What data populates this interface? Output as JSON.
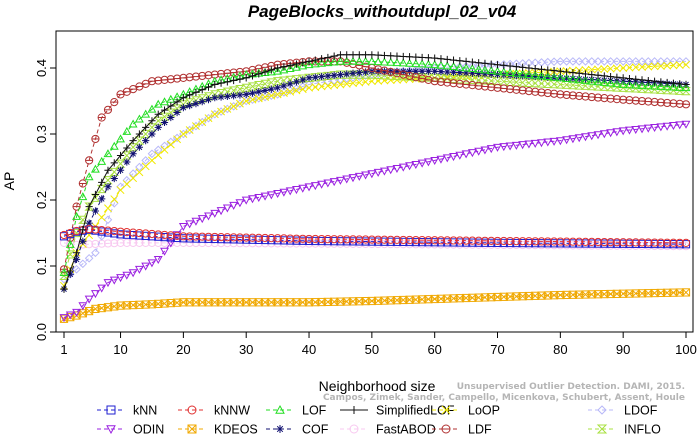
{
  "chart_data": {
    "type": "line",
    "title": "PageBlocks_withoutdupl_02_v04",
    "xlabel": "Neighborhood size",
    "ylabel": "AP",
    "xlim": [
      1,
      100
    ],
    "ylim": [
      0,
      0.45
    ],
    "xticks": [
      1,
      10,
      20,
      30,
      40,
      50,
      60,
      70,
      80,
      90,
      100
    ],
    "yticks": [
      0.0,
      0.1,
      0.2,
      0.3,
      0.4
    ],
    "ytick_labels": [
      "0.0",
      "0.1",
      "0.2",
      "0.3",
      "0.4"
    ],
    "grid": false,
    "legend_placement": "bottom",
    "series": [
      {
        "name": "kNN",
        "color": "#1f1fd0",
        "marker": "square",
        "dash": "4,3",
        "keypoints": [
          [
            1,
            0.145
          ],
          [
            3,
            0.152
          ],
          [
            5,
            0.155
          ],
          [
            10,
            0.148
          ],
          [
            20,
            0.142
          ],
          [
            40,
            0.138
          ],
          [
            70,
            0.135
          ],
          [
            100,
            0.133
          ]
        ]
      },
      {
        "name": "kNNW",
        "color": "#e03030",
        "marker": "circle",
        "dash": "4,3",
        "keypoints": [
          [
            1,
            0.147
          ],
          [
            3,
            0.153
          ],
          [
            5,
            0.156
          ],
          [
            10,
            0.152
          ],
          [
            20,
            0.145
          ],
          [
            40,
            0.141
          ],
          [
            70,
            0.138
          ],
          [
            100,
            0.135
          ]
        ]
      },
      {
        "name": "LOF",
        "color": "#22dd22",
        "marker": "triangle-up",
        "dash": "4,3",
        "keypoints": [
          [
            1,
            0.09
          ],
          [
            3,
            0.175
          ],
          [
            5,
            0.235
          ],
          [
            8,
            0.27
          ],
          [
            12,
            0.315
          ],
          [
            16,
            0.345
          ],
          [
            20,
            0.36
          ],
          [
            25,
            0.38
          ],
          [
            30,
            0.39
          ],
          [
            35,
            0.395
          ],
          [
            40,
            0.405
          ],
          [
            45,
            0.41
          ],
          [
            50,
            0.41
          ],
          [
            60,
            0.405
          ],
          [
            70,
            0.395
          ],
          [
            80,
            0.385
          ],
          [
            90,
            0.375
          ],
          [
            100,
            0.37
          ]
        ]
      },
      {
        "name": "SimplifiedLOF",
        "color": "#111111",
        "marker": "plus",
        "dash": "none",
        "keypoints": [
          [
            1,
            0.065
          ],
          [
            3,
            0.12
          ],
          [
            5,
            0.19
          ],
          [
            8,
            0.245
          ],
          [
            12,
            0.29
          ],
          [
            16,
            0.33
          ],
          [
            20,
            0.355
          ],
          [
            25,
            0.375
          ],
          [
            30,
            0.385
          ],
          [
            35,
            0.4
          ],
          [
            40,
            0.41
          ],
          [
            45,
            0.42
          ],
          [
            50,
            0.42
          ],
          [
            60,
            0.415
          ],
          [
            70,
            0.405
          ],
          [
            80,
            0.395
          ],
          [
            90,
            0.385
          ],
          [
            100,
            0.375
          ]
        ]
      },
      {
        "name": "LoOP",
        "color": "#f0e800",
        "marker": "x",
        "dash": "4,3",
        "keypoints": [
          [
            1,
            0.07
          ],
          [
            3,
            0.12
          ],
          [
            6,
            0.16
          ],
          [
            10,
            0.215
          ],
          [
            15,
            0.26
          ],
          [
            20,
            0.3
          ],
          [
            25,
            0.33
          ],
          [
            30,
            0.35
          ],
          [
            35,
            0.36
          ],
          [
            40,
            0.37
          ],
          [
            50,
            0.38
          ],
          [
            60,
            0.385
          ],
          [
            70,
            0.39
          ],
          [
            80,
            0.395
          ],
          [
            90,
            0.4
          ],
          [
            100,
            0.405
          ]
        ]
      },
      {
        "name": "LDOF",
        "color": "#b8b8f8",
        "marker": "diamond",
        "dash": "4,3",
        "keypoints": [
          [
            1,
            0.08
          ],
          [
            3,
            0.095
          ],
          [
            6,
            0.12
          ],
          [
            10,
            0.22
          ],
          [
            15,
            0.27
          ],
          [
            20,
            0.3
          ],
          [
            25,
            0.33
          ],
          [
            30,
            0.35
          ],
          [
            35,
            0.36
          ],
          [
            40,
            0.375
          ],
          [
            50,
            0.39
          ],
          [
            60,
            0.4
          ],
          [
            70,
            0.405
          ],
          [
            80,
            0.41
          ],
          [
            90,
            0.41
          ],
          [
            100,
            0.41
          ]
        ]
      },
      {
        "name": "ODIN",
        "color": "#9a20e0",
        "marker": "triangle-down",
        "dash": "4,3",
        "keypoints": [
          [
            1,
            0.022
          ],
          [
            3,
            0.03
          ],
          [
            5,
            0.05
          ],
          [
            8,
            0.075
          ],
          [
            12,
            0.09
          ],
          [
            16,
            0.11
          ],
          [
            20,
            0.16
          ],
          [
            25,
            0.18
          ],
          [
            30,
            0.2
          ],
          [
            35,
            0.21
          ],
          [
            40,
            0.22
          ],
          [
            45,
            0.23
          ],
          [
            50,
            0.24
          ],
          [
            55,
            0.25
          ],
          [
            60,
            0.26
          ],
          [
            65,
            0.27
          ],
          [
            70,
            0.28
          ],
          [
            80,
            0.29
          ],
          [
            90,
            0.305
          ],
          [
            100,
            0.315
          ]
        ]
      },
      {
        "name": "KDEOS",
        "color": "#f0a800",
        "marker": "square-x",
        "dash": "4,3",
        "keypoints": [
          [
            1,
            0.02
          ],
          [
            3,
            0.025
          ],
          [
            6,
            0.035
          ],
          [
            10,
            0.04
          ],
          [
            15,
            0.042
          ],
          [
            20,
            0.045
          ],
          [
            30,
            0.045
          ],
          [
            40,
            0.045
          ],
          [
            50,
            0.047
          ],
          [
            60,
            0.05
          ],
          [
            70,
            0.053
          ],
          [
            80,
            0.056
          ],
          [
            90,
            0.058
          ],
          [
            100,
            0.06
          ]
        ]
      },
      {
        "name": "COF",
        "color": "#101070",
        "marker": "asterisk",
        "dash": "4,3",
        "keypoints": [
          [
            1,
            0.065
          ],
          [
            3,
            0.11
          ],
          [
            5,
            0.165
          ],
          [
            8,
            0.22
          ],
          [
            12,
            0.27
          ],
          [
            16,
            0.31
          ],
          [
            20,
            0.34
          ],
          [
            25,
            0.355
          ],
          [
            30,
            0.36
          ],
          [
            35,
            0.37
          ],
          [
            40,
            0.385
          ],
          [
            45,
            0.39
          ],
          [
            50,
            0.395
          ],
          [
            60,
            0.395
          ],
          [
            70,
            0.39
          ],
          [
            80,
            0.385
          ],
          [
            90,
            0.38
          ],
          [
            100,
            0.375
          ]
        ]
      },
      {
        "name": "FastABOD",
        "color": "#f8c8f0",
        "marker": "circle",
        "dash": "4,3",
        "keypoints": [
          [
            1,
            0.135
          ],
          [
            3,
            0.132
          ],
          [
            5,
            0.133
          ],
          [
            10,
            0.135
          ],
          [
            20,
            0.135
          ],
          [
            40,
            0.134
          ],
          [
            70,
            0.132
          ],
          [
            100,
            0.13
          ]
        ]
      },
      {
        "name": "LDF",
        "color": "#b03030",
        "marker": "circle-dot",
        "dash": "4,3",
        "keypoints": [
          [
            1,
            0.095
          ],
          [
            3,
            0.19
          ],
          [
            5,
            0.26
          ],
          [
            7,
            0.325
          ],
          [
            10,
            0.36
          ],
          [
            15,
            0.38
          ],
          [
            20,
            0.385
          ],
          [
            30,
            0.395
          ],
          [
            35,
            0.405
          ],
          [
            40,
            0.41
          ],
          [
            45,
            0.41
          ],
          [
            50,
            0.4
          ],
          [
            55,
            0.39
          ],
          [
            60,
            0.38
          ],
          [
            70,
            0.37
          ],
          [
            80,
            0.36
          ],
          [
            90,
            0.352
          ],
          [
            100,
            0.345
          ]
        ]
      },
      {
        "name": "INFLO",
        "color": "#a8e040",
        "marker": "hourglass",
        "dash": "4,3",
        "keypoints": [
          [
            1,
            0.085
          ],
          [
            3,
            0.15
          ],
          [
            5,
            0.19
          ],
          [
            8,
            0.23
          ],
          [
            12,
            0.28
          ],
          [
            16,
            0.32
          ],
          [
            20,
            0.345
          ],
          [
            25,
            0.36
          ],
          [
            30,
            0.37
          ],
          [
            35,
            0.38
          ],
          [
            40,
            0.385
          ],
          [
            45,
            0.39
          ],
          [
            50,
            0.39
          ],
          [
            60,
            0.385
          ],
          [
            70,
            0.38
          ],
          [
            80,
            0.375
          ],
          [
            90,
            0.37
          ],
          [
            100,
            0.365
          ]
        ]
      }
    ]
  },
  "watermark": "Campos, Zimek, Sander, Campello, Micenkova, Schubert, Assent, Houle",
  "watermark_top": "Unsupervised Outlier Detection. DAMI, 2015."
}
